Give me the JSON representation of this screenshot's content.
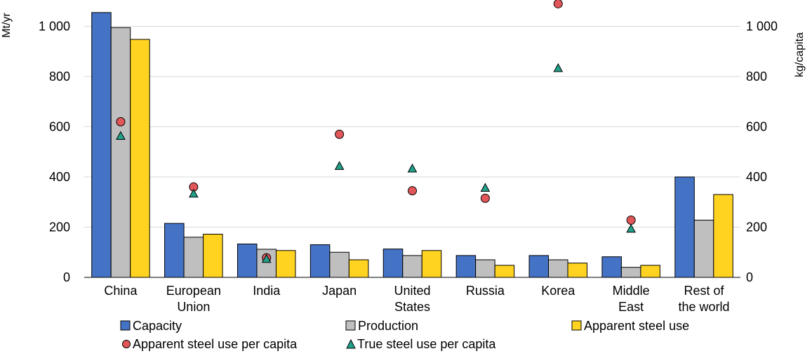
{
  "chart_data": {
    "type": "bar",
    "categories": [
      [
        "China"
      ],
      [
        "European",
        "Union"
      ],
      [
        "India"
      ],
      [
        "Japan"
      ],
      [
        "United",
        "States"
      ],
      [
        "Russia"
      ],
      [
        "Korea"
      ],
      [
        "Middle",
        "East"
      ],
      [
        "Rest of",
        "the world"
      ]
    ],
    "y_left": {
      "label": "Mt/yr",
      "range": [
        0,
        1050
      ],
      "ticks": [
        0,
        200,
        400,
        600,
        800,
        1000
      ],
      "tick_labels": [
        "0",
        "200",
        "400",
        "600",
        "800",
        "1 000"
      ]
    },
    "y_right": {
      "label": "kg/capita",
      "range": [
        0,
        1050
      ],
      "ticks": [
        0,
        200,
        400,
        600,
        800,
        1000
      ],
      "tick_labels": [
        "0",
        "200",
        "400",
        "600",
        "800",
        "1 000"
      ]
    },
    "grid": true,
    "bar_series": [
      {
        "name": "Capacity",
        "color": "#4472C4",
        "axis": "left",
        "values": [
          1055,
          215,
          133,
          130,
          113,
          87,
          87,
          82,
          400
        ]
      },
      {
        "name": "Production",
        "color": "#BFBFBF",
        "axis": "left",
        "values": [
          995,
          160,
          112,
          100,
          87,
          70,
          70,
          40,
          228
        ]
      },
      {
        "name": "Apparent steel use",
        "color": "#FFD320",
        "axis": "left",
        "values": [
          948,
          172,
          107,
          70,
          107,
          48,
          57,
          48,
          330
        ]
      }
    ],
    "point_series": [
      {
        "name": "Apparent steel use per capita",
        "marker": "circle",
        "color": "#E15759",
        "axis": "right",
        "values": [
          620,
          360,
          78,
          570,
          345,
          315,
          1090,
          228,
          null
        ]
      },
      {
        "name": "True steel use per capita",
        "marker": "triangle",
        "color": "#21A08A",
        "axis": "right",
        "values": [
          565,
          335,
          75,
          445,
          435,
          358,
          835,
          195,
          null
        ]
      }
    ],
    "legend": {
      "position": "bottom",
      "row1": [
        "Capacity",
        "Production",
        "Apparent steel use"
      ],
      "row2": [
        "Apparent steel use per capita",
        "True steel use per capita"
      ]
    }
  }
}
